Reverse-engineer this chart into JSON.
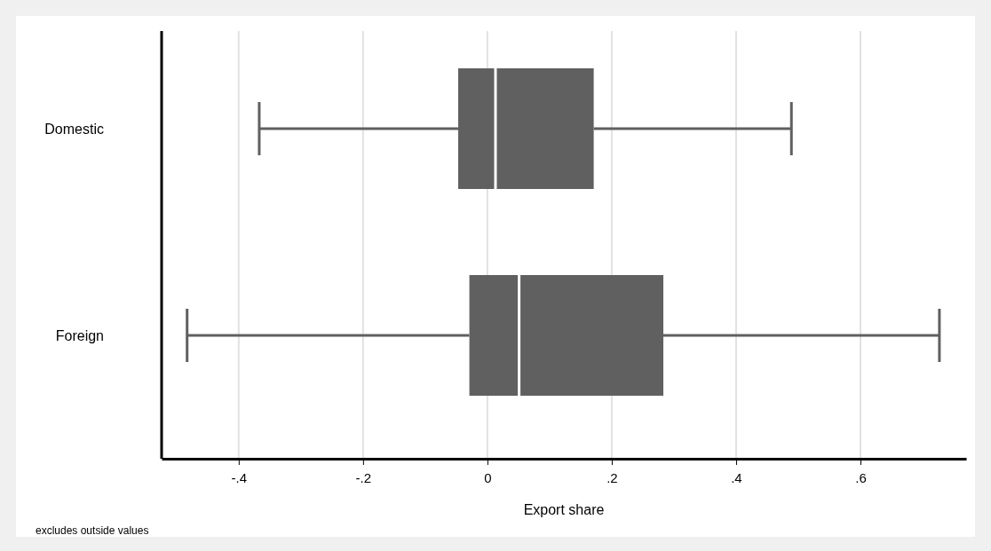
{
  "chart_data": {
    "type": "box",
    "orientation": "horizontal",
    "categories": [
      "Domestic",
      "Foreign"
    ],
    "boxes": [
      {
        "low": -0.367,
        "q1": -0.047,
        "median": 0.013,
        "q3": 0.171,
        "high": 0.489
      },
      {
        "low": -0.483,
        "q1": -0.029,
        "median": 0.051,
        "q3": 0.283,
        "high": 0.727
      }
    ],
    "color": "#606060",
    "xlim": [
      -0.524,
      0.77
    ],
    "xticks": [
      {
        "value": -0.4,
        "label": "-.4"
      },
      {
        "value": -0.2,
        "label": "-.2"
      },
      0,
      {
        "value": 0.2,
        "label": ".2"
      },
      {
        "value": 0.4,
        "label": ".4"
      },
      {
        "value": 0.6,
        "label": ".6"
      }
    ],
    "xlabel": "Export share",
    "annotations": [
      "excludes outside values"
    ],
    "grid": "x"
  }
}
